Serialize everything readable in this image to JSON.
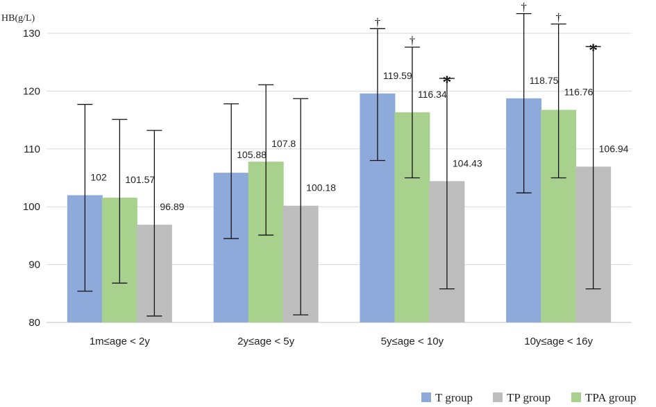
{
  "chart_data": {
    "type": "bar",
    "ylabel": "HB(g/L)",
    "ylim": [
      80,
      130
    ],
    "yticks": [
      80,
      90,
      100,
      110,
      120,
      130
    ],
    "grid": true,
    "categories": [
      "1m≤age < 2y",
      "2y≤age < 5y",
      "5y≤age < 10y",
      "10y≤age < 16y"
    ],
    "series": [
      {
        "name": "T group",
        "color": "#8eaadb",
        "values": [
          102,
          105.88,
          119.59,
          118.75
        ],
        "labels": [
          "102",
          "105.88",
          "119.59",
          "118.75"
        ],
        "err_low": [
          85.4,
          94.5,
          108.0,
          102.4
        ],
        "err_high": [
          117.7,
          117.8,
          130.8,
          133.4
        ],
        "marks": [
          "",
          "",
          "†",
          "†"
        ]
      },
      {
        "name": "TPA group",
        "color": "#a9d18e",
        "values": [
          101.57,
          107.8,
          116.34,
          116.76
        ],
        "labels": [
          "101.57",
          "107.8",
          "116.34",
          "116.76"
        ],
        "err_low": [
          86.8,
          95.1,
          105.0,
          105.0
        ],
        "err_high": [
          115.1,
          121.1,
          127.6,
          131.6
        ],
        "marks": [
          "",
          "",
          "†",
          "†"
        ]
      },
      {
        "name": "TP group",
        "color": "#bdbdbd",
        "values": [
          96.89,
          100.18,
          104.43,
          106.94
        ],
        "labels": [
          "96.89",
          "100.18",
          "104.43",
          "106.94"
        ],
        "err_low": [
          81.1,
          81.3,
          85.8,
          85.8
        ],
        "err_high": [
          113.2,
          118.7,
          122.2,
          127.7
        ],
        "marks": [
          "",
          "",
          "*",
          "*"
        ]
      }
    ],
    "legend": {
      "position": "bottom-right",
      "order": [
        "T group",
        "TP group",
        "TPA group"
      ]
    }
  }
}
